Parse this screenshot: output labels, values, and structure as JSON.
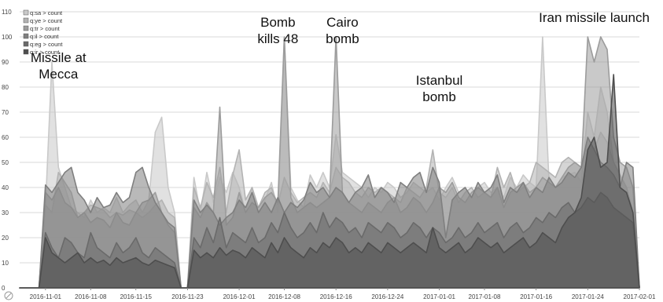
{
  "chart_data": {
    "type": "area",
    "stacked": false,
    "x": [
      "2016-10-28",
      "2016-10-29",
      "2016-10-30",
      "2016-10-31",
      "2016-11-01",
      "2016-11-02",
      "2016-11-03",
      "2016-11-04",
      "2016-11-05",
      "2016-11-06",
      "2016-11-07",
      "2016-11-08",
      "2016-11-09",
      "2016-11-10",
      "2016-11-11",
      "2016-11-12",
      "2016-11-13",
      "2016-11-14",
      "2016-11-15",
      "2016-11-16",
      "2016-11-17",
      "2016-11-18",
      "2016-11-19",
      "2016-11-20",
      "2016-11-21",
      "2016-11-22",
      "2016-11-23",
      "2016-11-24",
      "2016-11-25",
      "2016-11-26",
      "2016-11-27",
      "2016-11-28",
      "2016-11-29",
      "2016-11-30",
      "2016-12-01",
      "2016-12-02",
      "2016-12-03",
      "2016-12-04",
      "2016-12-05",
      "2016-12-06",
      "2016-12-07",
      "2016-12-08",
      "2016-12-09",
      "2016-12-10",
      "2016-12-11",
      "2016-12-12",
      "2016-12-13",
      "2016-12-14",
      "2016-12-15",
      "2016-12-16",
      "2016-12-17",
      "2016-12-18",
      "2016-12-19",
      "2016-12-20",
      "2016-12-21",
      "2016-12-22",
      "2016-12-23",
      "2016-12-24",
      "2016-12-25",
      "2016-12-26",
      "2016-12-27",
      "2016-12-28",
      "2016-12-29",
      "2016-12-30",
      "2016-12-31",
      "2017-01-01",
      "2017-01-02",
      "2017-01-03",
      "2017-01-04",
      "2017-01-05",
      "2017-01-06",
      "2017-01-07",
      "2017-01-08",
      "2017-01-09",
      "2017-01-10",
      "2017-01-11",
      "2017-01-12",
      "2017-01-13",
      "2017-01-14",
      "2017-01-15",
      "2017-01-16",
      "2017-01-17",
      "2017-01-18",
      "2017-01-19",
      "2017-01-20",
      "2017-01-21",
      "2017-01-22",
      "2017-01-23",
      "2017-01-24",
      "2017-01-25",
      "2017-01-26",
      "2017-01-27",
      "2017-01-28",
      "2017-01-29",
      "2017-01-30",
      "2017-01-31",
      "2017-02-01"
    ],
    "ylim": [
      0,
      110
    ],
    "yticks": [
      0,
      10,
      20,
      30,
      40,
      50,
      60,
      70,
      80,
      90,
      100,
      110
    ],
    "xticks": [
      "2016-11-01",
      "2016-11-08",
      "2016-11-15",
      "2016-11-23",
      "2016-12-01",
      "2016-12-08",
      "2016-12-16",
      "2016-12-24",
      "2017-01-01",
      "2017-01-08",
      "2017-01-16",
      "2017-01-24",
      "2017-02-01"
    ],
    "grid": true,
    "legend_position": "top-left",
    "series": [
      {
        "name": "q:sa > count",
        "color": "#c9c9c9",
        "values": [
          0,
          0,
          0,
          0,
          32,
          90,
          48,
          40,
          32,
          30,
          28,
          35,
          30,
          32,
          30,
          36,
          30,
          33,
          35,
          30,
          35,
          62,
          68,
          40,
          30,
          0,
          0,
          44,
          30,
          46,
          34,
          44,
          38,
          46,
          40,
          30,
          40,
          30,
          35,
          42,
          30,
          100,
          40,
          35,
          32,
          45,
          40,
          46,
          40,
          61,
          46,
          44,
          42,
          40,
          36,
          40,
          38,
          42,
          40,
          36,
          38,
          42,
          40,
          38,
          40,
          35,
          40,
          44,
          38,
          40,
          36,
          40,
          42,
          38,
          40,
          36,
          44,
          40,
          45,
          42,
          40,
          100,
          42,
          40,
          44,
          45,
          46,
          42,
          70,
          60,
          80,
          70,
          50,
          45,
          40,
          30,
          0
        ]
      },
      {
        "name": "q:ye > count",
        "color": "#b3b3b3",
        "values": [
          0,
          0,
          0,
          0,
          33,
          30,
          46,
          42,
          38,
          28,
          30,
          33,
          32,
          31,
          28,
          30,
          29,
          31,
          30,
          28,
          30,
          33,
          35,
          30,
          28,
          0,
          0,
          40,
          32,
          42,
          36,
          48,
          30,
          45,
          55,
          35,
          40,
          32,
          38,
          40,
          33,
          44,
          38,
          34,
          36,
          38,
          36,
          42,
          38,
          48,
          44,
          42,
          38,
          36,
          40,
          38,
          40,
          38,
          36,
          34,
          40,
          38,
          36,
          40,
          55,
          38,
          36,
          40,
          34,
          38,
          40,
          36,
          38,
          36,
          48,
          40,
          46,
          38,
          40,
          42,
          50,
          48,
          46,
          44,
          50,
          52,
          50,
          48,
          60,
          55,
          62,
          58,
          50,
          45,
          40,
          30,
          0
        ]
      },
      {
        "name": "q:tr > count",
        "color": "#9c9c9c",
        "values": [
          0,
          0,
          0,
          0,
          38,
          35,
          40,
          34,
          32,
          28,
          30,
          26,
          28,
          27,
          24,
          30,
          26,
          25,
          30,
          34,
          35,
          38,
          30,
          25,
          22,
          0,
          0,
          32,
          28,
          34,
          30,
          72,
          25,
          28,
          38,
          30,
          34,
          32,
          36,
          38,
          34,
          100,
          36,
          30,
          32,
          34,
          32,
          34,
          36,
          100,
          38,
          34,
          32,
          30,
          34,
          32,
          30,
          34,
          36,
          30,
          32,
          36,
          34,
          30,
          34,
          40,
          38,
          42,
          36,
          34,
          38,
          40,
          38,
          36,
          40,
          32,
          38,
          40,
          42,
          38,
          40,
          44,
          42,
          40,
          44,
          48,
          50,
          48,
          100,
          90,
          100,
          95,
          60,
          50,
          48,
          40,
          0
        ]
      },
      {
        "name": "q:il > count",
        "color": "#7f7f7f",
        "values": [
          0,
          0,
          0,
          0,
          41,
          38,
          42,
          46,
          48,
          38,
          35,
          30,
          36,
          32,
          33,
          38,
          34,
          36,
          46,
          48,
          40,
          34,
          30,
          26,
          24,
          0,
          0,
          35,
          30,
          33,
          30,
          25,
          28,
          30,
          35,
          32,
          38,
          30,
          34,
          30,
          36,
          30,
          34,
          32,
          35,
          42,
          38,
          40,
          36,
          40,
          38,
          34,
          38,
          40,
          45,
          36,
          40,
          38,
          34,
          42,
          40,
          44,
          46,
          38,
          48,
          42,
          20,
          35,
          38,
          40,
          36,
          42,
          38,
          40,
          45,
          34,
          40,
          38,
          42,
          36,
          40,
          38,
          44,
          40,
          42,
          46,
          44,
          48,
          60,
          55,
          50,
          48,
          45,
          40,
          50,
          48,
          0
        ]
      },
      {
        "name": "q:eg > count",
        "color": "#6a6a6a",
        "values": [
          0,
          0,
          0,
          0,
          22,
          16,
          12,
          20,
          18,
          14,
          12,
          22,
          16,
          14,
          12,
          18,
          14,
          16,
          20,
          14,
          12,
          16,
          14,
          12,
          10,
          0,
          0,
          20,
          16,
          24,
          18,
          28,
          16,
          22,
          20,
          18,
          24,
          18,
          20,
          26,
          22,
          30,
          24,
          20,
          22,
          26,
          22,
          30,
          24,
          28,
          26,
          22,
          24,
          20,
          26,
          24,
          22,
          26,
          24,
          20,
          22,
          26,
          24,
          20,
          24,
          22,
          18,
          20,
          24,
          20,
          22,
          26,
          22,
          24,
          26,
          20,
          24,
          26,
          22,
          24,
          28,
          26,
          30,
          28,
          32,
          34,
          30,
          32,
          36,
          34,
          38,
          36,
          32,
          30,
          28,
          26,
          0
        ]
      },
      {
        "name": "q:ir > count",
        "color": "#4e4e4e",
        "values": [
          0,
          0,
          0,
          0,
          20,
          14,
          12,
          10,
          12,
          14,
          10,
          12,
          10,
          11,
          9,
          12,
          10,
          11,
          12,
          10,
          9,
          11,
          10,
          9,
          8,
          0,
          0,
          15,
          12,
          14,
          12,
          16,
          13,
          15,
          14,
          12,
          16,
          14,
          12,
          18,
          14,
          20,
          16,
          14,
          12,
          16,
          14,
          18,
          16,
          20,
          18,
          14,
          16,
          14,
          18,
          16,
          14,
          18,
          16,
          14,
          16,
          18,
          16,
          14,
          24,
          16,
          14,
          16,
          18,
          14,
          16,
          20,
          18,
          16,
          18,
          14,
          16,
          18,
          20,
          16,
          18,
          22,
          20,
          18,
          24,
          28,
          30,
          36,
          55,
          60,
          48,
          50,
          85,
          40,
          38,
          30,
          0
        ]
      }
    ],
    "annotations": [
      {
        "lines": [
          "Missile at",
          "Mecca"
        ],
        "x": "2016-11-03",
        "y": 90
      },
      {
        "lines": [
          "Bomb",
          "kills 48"
        ],
        "x": "2016-12-07",
        "y": 104
      },
      {
        "lines": [
          "Cairo",
          "bomb"
        ],
        "x": "2016-12-17",
        "y": 104
      },
      {
        "lines": [
          "Istanbul",
          "bomb"
        ],
        "x": "2017-01-01",
        "y": 81
      },
      {
        "lines": [
          "Iran missile launch"
        ],
        "x": "2017-01-25",
        "y": 106
      }
    ]
  }
}
